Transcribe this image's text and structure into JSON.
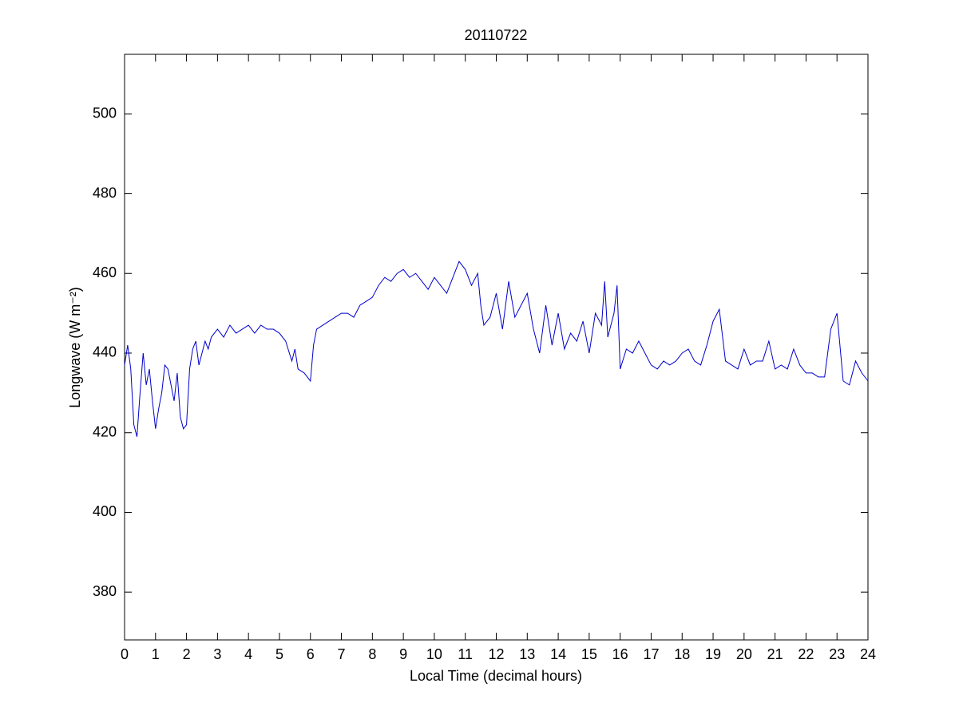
{
  "chart_data": {
    "type": "line",
    "title": "20110722",
    "xlabel": "Local Time (decimal hours)",
    "ylabel": "Longwave (W m⁻²)",
    "xlim": [
      0,
      24
    ],
    "ylim": [
      368,
      515
    ],
    "xticks": [
      0,
      1,
      2,
      3,
      4,
      5,
      6,
      7,
      8,
      9,
      10,
      11,
      12,
      13,
      14,
      15,
      16,
      17,
      18,
      19,
      20,
      21,
      22,
      23,
      24
    ],
    "yticks": [
      380,
      400,
      420,
      440,
      460,
      480,
      500
    ],
    "grid": false,
    "x": [
      0,
      0.1,
      0.2,
      0.3,
      0.4,
      0.5,
      0.6,
      0.7,
      0.8,
      0.9,
      1,
      1.1,
      1.2,
      1.3,
      1.4,
      1.5,
      1.6,
      1.7,
      1.8,
      1.9,
      2,
      2.1,
      2.2,
      2.3,
      2.4,
      2.5,
      2.6,
      2.7,
      2.8,
      3,
      3.2,
      3.4,
      3.6,
      3.8,
      4,
      4.2,
      4.4,
      4.6,
      4.8,
      5,
      5.2,
      5.4,
      5.5,
      5.6,
      5.8,
      6,
      6.1,
      6.2,
      6.4,
      6.6,
      6.8,
      7,
      7.2,
      7.4,
      7.6,
      7.8,
      8,
      8.2,
      8.4,
      8.6,
      8.8,
      9,
      9.2,
      9.4,
      9.6,
      9.8,
      10,
      10.2,
      10.4,
      10.6,
      10.8,
      11,
      11.2,
      11.4,
      11.5,
      11.6,
      11.8,
      12,
      12.2,
      12.4,
      12.6,
      12.8,
      13,
      13.2,
      13.4,
      13.6,
      13.8,
      14,
      14.2,
      14.4,
      14.6,
      14.8,
      15,
      15.2,
      15.4,
      15.5,
      15.6,
      15.8,
      15.9,
      16,
      16.2,
      16.4,
      16.6,
      16.8,
      17,
      17.2,
      17.4,
      17.6,
      17.8,
      18,
      18.2,
      18.4,
      18.6,
      18.8,
      19,
      19.2,
      19.4,
      19.6,
      19.8,
      20,
      20.2,
      20.4,
      20.6,
      20.8,
      21,
      21.2,
      21.4,
      21.6,
      21.8,
      22,
      22.2,
      22.4,
      22.6,
      22.8,
      23,
      23.2,
      23.4,
      23.6,
      23.8,
      24
    ],
    "series": [
      {
        "color": "#0000cc",
        "values": [
          437,
          442,
          436,
          422,
          419,
          430,
          440,
          432,
          436,
          428,
          421,
          426,
          430,
          437,
          436,
          432,
          428,
          435,
          424,
          421,
          422,
          436,
          441,
          443,
          437,
          440,
          443,
          441,
          444,
          446,
          444,
          447,
          445,
          446,
          447,
          445,
          447,
          446,
          446,
          445,
          443,
          438,
          441,
          436,
          435,
          433,
          442,
          446,
          447,
          448,
          449,
          450,
          450,
          449,
          452,
          453,
          454,
          457,
          459,
          458,
          460,
          461,
          459,
          460,
          458,
          456,
          459,
          457,
          455,
          459,
          463,
          461,
          457,
          460,
          452,
          447,
          449,
          455,
          446,
          458,
          449,
          452,
          455,
          446,
          440,
          452,
          442,
          450,
          441,
          445,
          443,
          448,
          440,
          450,
          447,
          458,
          444,
          450,
          457,
          436,
          441,
          440,
          443,
          440,
          437,
          436,
          438,
          437,
          438,
          440,
          441,
          438,
          437,
          442,
          448,
          451,
          438,
          437,
          436,
          441,
          437,
          438,
          438,
          443,
          436,
          437,
          436,
          441,
          437,
          435,
          435,
          434,
          434,
          446,
          450,
          433,
          432,
          438,
          435,
          433
        ]
      }
    ]
  }
}
